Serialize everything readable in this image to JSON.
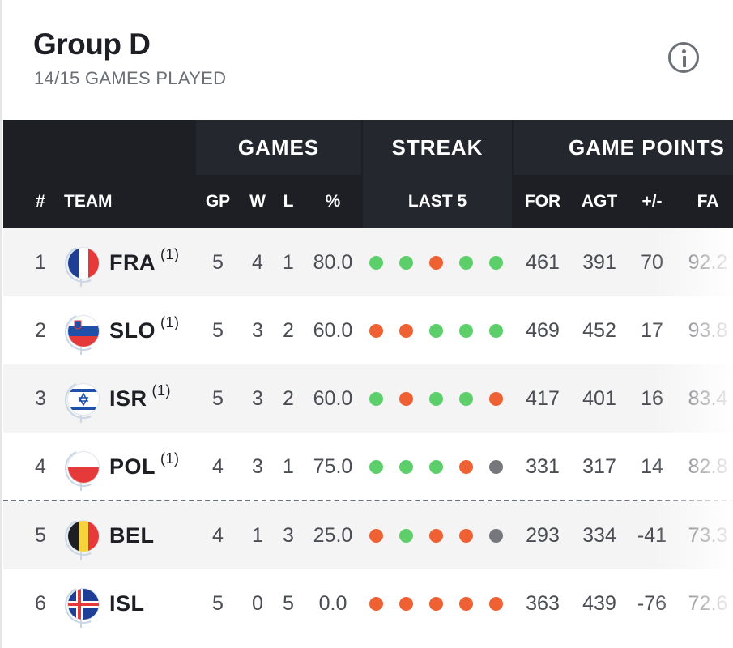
{
  "group": {
    "title": "Group D",
    "subtitle": "14/15 GAMES PLAYED"
  },
  "header": {
    "groups": {
      "games": "GAMES",
      "streak": "STREAK",
      "game_points": "GAME POINTS"
    },
    "columns": {
      "rank": "#",
      "team": "TEAM",
      "gp": "GP",
      "w": "W",
      "l": "L",
      "pct": "%",
      "last5": "LAST 5",
      "for": "FOR",
      "agt": "AGT",
      "diff": "+/-",
      "fa": "FA"
    }
  },
  "streak_colors": {
    "win": "#5ccf6a",
    "loss": "#ef6133",
    "not_played": "#75777c"
  },
  "rows": [
    {
      "rank": "1",
      "team": "FRA",
      "note": "(1)",
      "flag": "france-flag",
      "gp": "5",
      "w": "4",
      "l": "1",
      "pct": "80.0",
      "last5": [
        "W",
        "W",
        "L",
        "W",
        "W"
      ],
      "for": "461",
      "agt": "391",
      "diff": "70",
      "fa": "92.2"
    },
    {
      "rank": "2",
      "team": "SLO",
      "note": "(1)",
      "flag": "slovenia-flag",
      "gp": "5",
      "w": "3",
      "l": "2",
      "pct": "60.0",
      "last5": [
        "L",
        "L",
        "W",
        "W",
        "W"
      ],
      "for": "469",
      "agt": "452",
      "diff": "17",
      "fa": "93.8"
    },
    {
      "rank": "3",
      "team": "ISR",
      "note": "(1)",
      "flag": "israel-flag",
      "gp": "5",
      "w": "3",
      "l": "2",
      "pct": "60.0",
      "last5": [
        "W",
        "L",
        "W",
        "W",
        "L"
      ],
      "for": "417",
      "agt": "401",
      "diff": "16",
      "fa": "83.4"
    },
    {
      "rank": "4",
      "team": "POL",
      "note": "(1)",
      "flag": "poland-flag",
      "gp": "4",
      "w": "3",
      "l": "1",
      "pct": "75.0",
      "last5": [
        "W",
        "W",
        "W",
        "L",
        "N"
      ],
      "for": "331",
      "agt": "317",
      "diff": "14",
      "fa": "82.8"
    },
    {
      "rank": "5",
      "team": "BEL",
      "note": "",
      "flag": "belgium-flag",
      "gp": "4",
      "w": "1",
      "l": "3",
      "pct": "25.0",
      "last5": [
        "L",
        "W",
        "L",
        "L",
        "N"
      ],
      "for": "293",
      "agt": "334",
      "diff": "-41",
      "fa": "73.3"
    },
    {
      "rank": "6",
      "team": "ISL",
      "note": "",
      "flag": "iceland-flag",
      "gp": "5",
      "w": "0",
      "l": "5",
      "pct": "0.0",
      "last5": [
        "L",
        "L",
        "L",
        "L",
        "L"
      ],
      "for": "363",
      "agt": "439",
      "diff": "-76",
      "fa": "72.6"
    }
  ]
}
